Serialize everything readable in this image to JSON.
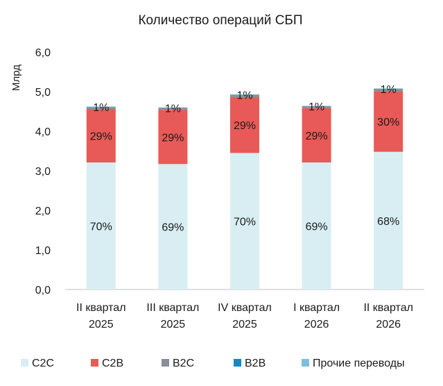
{
  "chart_data": {
    "type": "bar",
    "stacked": true,
    "title": "Количество операций СБП",
    "ylabel": "Млрд",
    "xlabel": "",
    "ylim": [
      0,
      6
    ],
    "yticks": [
      0,
      1,
      2,
      3,
      4,
      5,
      6
    ],
    "ytick_labels": [
      "0,0",
      "1,0",
      "2,0",
      "3,0",
      "4,0",
      "5,0",
      "6,0"
    ],
    "grid": false,
    "legend_position": "bottom",
    "categories": [
      [
        "II квартал",
        "2025"
      ],
      [
        "III квартал",
        "2025"
      ],
      [
        "IV квартал",
        "2025"
      ],
      [
        "I квартал",
        "2026"
      ],
      [
        "II квартал",
        "2026"
      ]
    ],
    "series": [
      {
        "name": "C2C",
        "color": "#d8eef3",
        "values": [
          3.21,
          3.17,
          3.45,
          3.21,
          3.48
        ],
        "labels": [
          "70%",
          "69%",
          "70%",
          "69%",
          "68%"
        ]
      },
      {
        "name": "C2B",
        "color": "#e85a57",
        "values": [
          1.35,
          1.37,
          1.41,
          1.37,
          1.53
        ],
        "labels": [
          "29%",
          "29%",
          "29%",
          "29%",
          "30%"
        ]
      },
      {
        "name": "B2C",
        "color": "#8a9098",
        "values": [
          0.05,
          0.05,
          0.06,
          0.05,
          0.06
        ],
        "labels": [
          "1%",
          "1%",
          "1%",
          "1%",
          "1%"
        ]
      },
      {
        "name": "B2B",
        "color": "#1587c4",
        "values": [
          0.003,
          0.003,
          0.003,
          0.003,
          0.003
        ],
        "labels": []
      },
      {
        "name": "Прочие переводы",
        "color": "#7fbfdc",
        "values": [
          0.01,
          0.01,
          0.01,
          0.01,
          0.01
        ],
        "labels": []
      }
    ]
  }
}
